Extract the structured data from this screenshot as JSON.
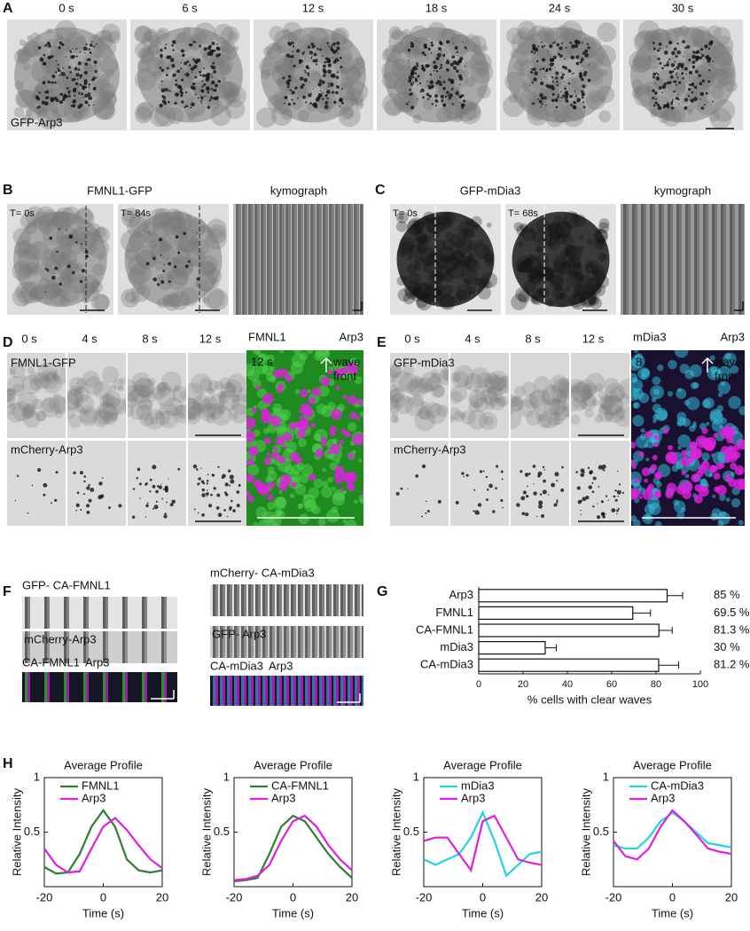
{
  "panels": {
    "letters": [
      "A",
      "B",
      "C",
      "D",
      "E",
      "F",
      "G",
      "H"
    ],
    "A": {
      "times": [
        "0 s",
        "6 s",
        "12 s",
        "18 s",
        "24 s",
        "30 s"
      ],
      "label": "GFP-Arp3"
    },
    "B": {
      "title": "FMNL1-GFP",
      "kymograph": "kymograph",
      "times": [
        "T= 0s",
        "T= 84s"
      ]
    },
    "C": {
      "title": "GFP-mDia3",
      "kymograph": "kymograph",
      "times": [
        "T= 0s",
        "T= 68s"
      ]
    },
    "D": {
      "times": [
        "0 s",
        "4 s",
        "8 s",
        "12 s"
      ],
      "top": "FMNL1-GFP",
      "bottom": "mCherry-Arp3",
      "merge_a": "FMNL1",
      "merge_b": "Arp3",
      "merge_time": "12 s",
      "wave": "wave",
      "front": "front"
    },
    "E": {
      "times": [
        "0 s",
        "4 s",
        "8 s",
        "12 s"
      ],
      "top": "GFP-mDia3",
      "bottom": "mCherry-Arp3",
      "merge_a": "mDia3",
      "merge_b": "Arp3",
      "merge_time": "8 s",
      "wave": "wave",
      "front": "front"
    },
    "F": {
      "left": [
        "GFP- CA-FMNL1",
        "mCherry-Arp3",
        "CA-FMNL1",
        "Arp3"
      ],
      "right": [
        "mCherry- CA-mDia3",
        "GFP- Arp3",
        "CA-mDia3",
        "Arp3"
      ]
    }
  },
  "chart_data": [
    {
      "type": "bar",
      "orientation": "horizontal",
      "categories": [
        "Arp3",
        "FMNL1",
        "CA-FMNL1",
        "mDia3",
        "CA-mDia3"
      ],
      "values": [
        85,
        69.5,
        81.3,
        30,
        81.2
      ],
      "value_labels": [
        "85 %",
        "69.5 %",
        "81.3 %",
        "30 %",
        "81.2 %"
      ],
      "errors": [
        7,
        8,
        6,
        5,
        9
      ],
      "color": "#ffffff",
      "xlim": [
        0,
        100
      ],
      "xticks": [
        0,
        20,
        40,
        60,
        80,
        100
      ],
      "xlabel": "% cells with clear waves"
    },
    {
      "type": "line",
      "title": "Average Profile",
      "xlabel": "Time (s)",
      "ylabel": "Relative Intensity",
      "x": [
        -20,
        -16,
        -12,
        -8,
        -4,
        0,
        4,
        8,
        12,
        16,
        20
      ],
      "xlim": [
        -20,
        20
      ],
      "xticks": [
        -20,
        0,
        20
      ],
      "ylim": [
        0,
        1
      ],
      "yticks": [
        0.5,
        1
      ],
      "legend": "upper left",
      "series": [
        {
          "name": "FMNL1",
          "color": "#2e7d32",
          "values": [
            0.18,
            0.12,
            0.13,
            0.3,
            0.55,
            0.7,
            0.55,
            0.25,
            0.15,
            0.13,
            0.15
          ]
        },
        {
          "name": "Arp3",
          "color": "#e020e0",
          "values": [
            0.35,
            0.2,
            0.13,
            0.14,
            0.35,
            0.55,
            0.63,
            0.52,
            0.38,
            0.25,
            0.17
          ]
        }
      ]
    },
    {
      "type": "line",
      "title": "Average Profile",
      "xlabel": "Time (s)",
      "ylabel": "Relative Intensity",
      "x": [
        -20,
        -16,
        -12,
        -8,
        -4,
        0,
        4,
        8,
        12,
        16,
        20
      ],
      "xlim": [
        -20,
        20
      ],
      "xticks": [
        -20,
        0,
        20
      ],
      "ylim": [
        0,
        1
      ],
      "yticks": [
        0.5,
        1
      ],
      "legend": "upper left",
      "series": [
        {
          "name": "CA-FMNL1",
          "color": "#2e7d32",
          "values": [
            0.05,
            0.06,
            0.08,
            0.3,
            0.55,
            0.65,
            0.6,
            0.45,
            0.3,
            0.18,
            0.08
          ]
        },
        {
          "name": "Arp3",
          "color": "#e020e0",
          "values": [
            0.06,
            0.07,
            0.1,
            0.2,
            0.42,
            0.6,
            0.65,
            0.55,
            0.38,
            0.25,
            0.15
          ]
        }
      ]
    },
    {
      "type": "line",
      "title": "Average Profile",
      "xlabel": "Time (s)",
      "ylabel": "Relative Intensity",
      "x": [
        -20,
        -16,
        -12,
        -8,
        -4,
        0,
        4,
        8,
        12,
        16,
        20
      ],
      "xlim": [
        -20,
        20
      ],
      "xticks": [
        -20,
        0,
        20
      ],
      "ylim": [
        0,
        1
      ],
      "yticks": [
        0.5,
        1
      ],
      "legend": "upper left",
      "series": [
        {
          "name": "mDia3",
          "color": "#22d3e6",
          "values": [
            0.25,
            0.2,
            0.25,
            0.3,
            0.45,
            0.68,
            0.42,
            0.1,
            0.2,
            0.3,
            0.32
          ]
        },
        {
          "name": "Arp3",
          "color": "#e020e0",
          "values": [
            0.42,
            0.45,
            0.45,
            0.3,
            0.15,
            0.6,
            0.65,
            0.45,
            0.25,
            0.22,
            0.2
          ]
        }
      ]
    },
    {
      "type": "line",
      "title": "Average Profile",
      "xlabel": "Time (s)",
      "ylabel": "Relative Intensity",
      "x": [
        -20,
        -16,
        -12,
        -8,
        -4,
        0,
        4,
        8,
        12,
        16,
        20
      ],
      "xlim": [
        -20,
        20
      ],
      "xticks": [
        -20,
        0,
        20
      ],
      "ylim": [
        0,
        1
      ],
      "yticks": [
        0.5,
        1
      ],
      "legend": "upper left",
      "series": [
        {
          "name": "CA-mDia3",
          "color": "#22d3e6",
          "values": [
            0.38,
            0.35,
            0.35,
            0.45,
            0.6,
            0.68,
            0.6,
            0.5,
            0.4,
            0.38,
            0.36
          ]
        },
        {
          "name": "Arp3",
          "color": "#e020e0",
          "values": [
            0.42,
            0.28,
            0.25,
            0.35,
            0.55,
            0.7,
            0.6,
            0.48,
            0.35,
            0.32,
            0.3
          ]
        }
      ]
    }
  ]
}
